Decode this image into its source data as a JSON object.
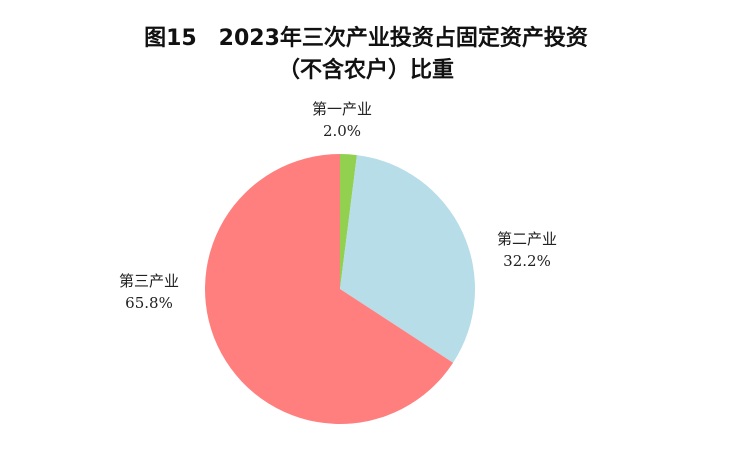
{
  "chart_data": {
    "type": "pie",
    "title_line1": "图15　2023年三次产业投资占固定资产投资",
    "title_line2": "（不含农户）比重",
    "slices": [
      {
        "label": "第一产业",
        "value": 2.0,
        "value_label": "2.0%",
        "color": "#92D050"
      },
      {
        "label": "第二产业",
        "value": 32.2,
        "value_label": "32.2%",
        "color": "#B7DDE8"
      },
      {
        "label": "第三产业",
        "value": 65.8,
        "value_label": "65.8%",
        "color": "#FF7F7F"
      }
    ],
    "start": "top",
    "direction": "clockwise"
  }
}
